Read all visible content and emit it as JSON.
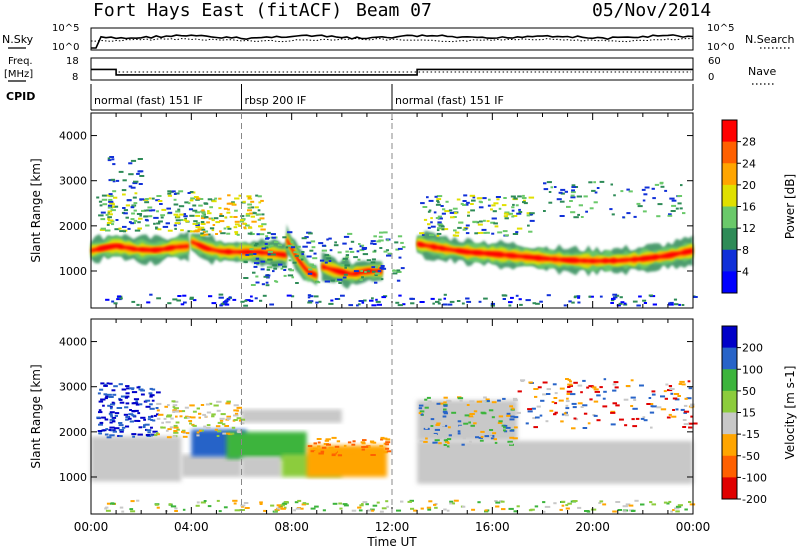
{
  "header": {
    "station": "Fort Hays East (fitACF)",
    "beam": "Beam 07",
    "date": "05/Nov/2014"
  },
  "noise_panel": {
    "left_label": "N.Sky",
    "right_label": "N.Search",
    "left_ticks": [
      "10^5",
      "10^0"
    ],
    "right_ticks": [
      "10^5",
      "10^0"
    ]
  },
  "freq_panel": {
    "left_label_1": "Freq.",
    "left_label_2": "[MHz]",
    "right_label": "Nave",
    "left_ticks": [
      "18",
      "8"
    ],
    "right_ticks": [
      "60",
      "0"
    ]
  },
  "cpid": {
    "label": "CPID",
    "segments": [
      {
        "text": "normal (fast) 151 IF",
        "start_hour": 0,
        "end_hour": 6
      },
      {
        "text": "rbsp 200 IF",
        "start_hour": 6,
        "end_hour": 12
      },
      {
        "text": "normal (fast) 151 IF",
        "start_hour": 12,
        "end_hour": 24
      }
    ]
  },
  "chart_data": [
    {
      "type": "heatmap",
      "name": "power",
      "ylabel": "Slant Range [km]",
      "yticks": [
        "4000",
        "3000",
        "2000",
        "1000"
      ],
      "ylim": [
        180,
        4500
      ],
      "xlim": [
        0,
        24
      ],
      "colorbar_label": "Power [dB]",
      "colorbar_ticks": [
        "28",
        "24",
        "20",
        "16",
        "12",
        "8",
        "4"
      ],
      "colorbar_colors": [
        "#ff0000",
        "#ff6000",
        "#ffa500",
        "#e0e000",
        "#6ac96a",
        "#2e8b57",
        "#1030d8",
        "#0000ff"
      ],
      "bands": [
        {
          "x": [
            0.0,
            0.4,
            1.0,
            1.8,
            2.6,
            3.4,
            3.9
          ],
          "y": [
            1450,
            1500,
            1560,
            1480,
            1460,
            1530,
            1550
          ]
        },
        {
          "x": [
            4.0,
            4.6,
            5.2,
            6.0,
            6.6,
            7.2,
            7.8
          ],
          "y": [
            1650,
            1500,
            1430,
            1420,
            1420,
            1390,
            1350
          ]
        },
        {
          "x": [
            7.8,
            8.2,
            8.6,
            9.0
          ],
          "y": [
            1700,
            1300,
            1000,
            900
          ]
        },
        {
          "x": [
            9.2,
            9.8,
            10.4,
            11.0,
            11.6
          ],
          "y": [
            1100,
            1000,
            930,
            1000,
            1000
          ]
        },
        {
          "x": [
            13.0,
            14.0,
            15.0,
            16.0,
            17.0,
            18.0,
            19.0,
            20.0,
            21.0,
            22.0,
            23.0,
            24.0
          ],
          "y": [
            1600,
            1500,
            1420,
            1380,
            1330,
            1280,
            1240,
            1220,
            1230,
            1270,
            1340,
            1450
          ]
        }
      ]
    },
    {
      "type": "heatmap",
      "name": "velocity",
      "ylabel": "Slant Range [km]",
      "yticks": [
        "4000",
        "3000",
        "2000",
        "1000"
      ],
      "ylim": [
        180,
        4500
      ],
      "xlim": [
        0,
        24
      ],
      "colorbar_label": "Velocity [m s-1]",
      "colorbar_ticks": [
        "200",
        "100",
        "50",
        "15",
        "-15",
        "-50",
        "-100",
        "-200"
      ],
      "colorbar_colors": [
        "#0000c8",
        "#2864c8",
        "#3cb43c",
        "#8ccc3c",
        "#c8c8c8",
        "#ffa500",
        "#ff6000",
        "#e00000"
      ],
      "xlabel": "Time UT",
      "xticks": [
        "00:00",
        "04:00",
        "08:00",
        "12:00",
        "16:00",
        "20:00",
        "00:00"
      ]
    }
  ]
}
